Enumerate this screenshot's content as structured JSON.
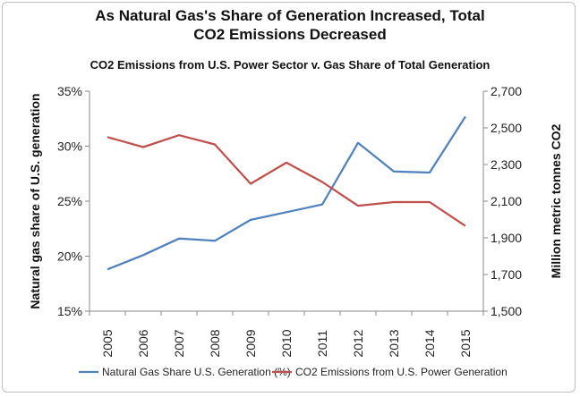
{
  "chart_data": {
    "type": "line",
    "title": "As Natural Gas's Share of Generation Increased, Total",
    "title_line2": "CO2 Emissions Decreased",
    "subtitle": "CO2 Emissions from U.S. Power Sector v. Gas Share of Total Generation",
    "x": [
      "2005",
      "2006",
      "2007",
      "2008",
      "2009",
      "2010",
      "2011",
      "2012",
      "2013",
      "2014",
      "2015"
    ],
    "ylabel_left": "Natural gas share of U.S. generation",
    "ylabel_right": "Million metric tonnes CO2",
    "ylim_left": [
      15,
      35
    ],
    "ylim_right": [
      1500,
      2700
    ],
    "yticks_left": [
      "15%",
      "20%",
      "25%",
      "30%",
      "35%"
    ],
    "yticks_right": [
      "1,500",
      "1,700",
      "1,900",
      "2,100",
      "2,300",
      "2,500",
      "2,700"
    ],
    "grid": false,
    "legend_position": "bottom",
    "series": [
      {
        "name": "Natural Gas Share U.S. Generation (%)",
        "axis": "left",
        "color": "#4f81bd",
        "values": [
          18.8,
          20.1,
          21.6,
          21.4,
          23.3,
          24.0,
          24.7,
          30.3,
          27.7,
          27.6,
          32.7
        ]
      },
      {
        "name": "CO2 Emissions from U.S. Power Generation",
        "axis": "right",
        "color": "#c0504d",
        "values": [
          2450,
          2395,
          2460,
          2410,
          2195,
          2310,
          2205,
          2075,
          2095,
          2095,
          1965
        ]
      }
    ]
  }
}
